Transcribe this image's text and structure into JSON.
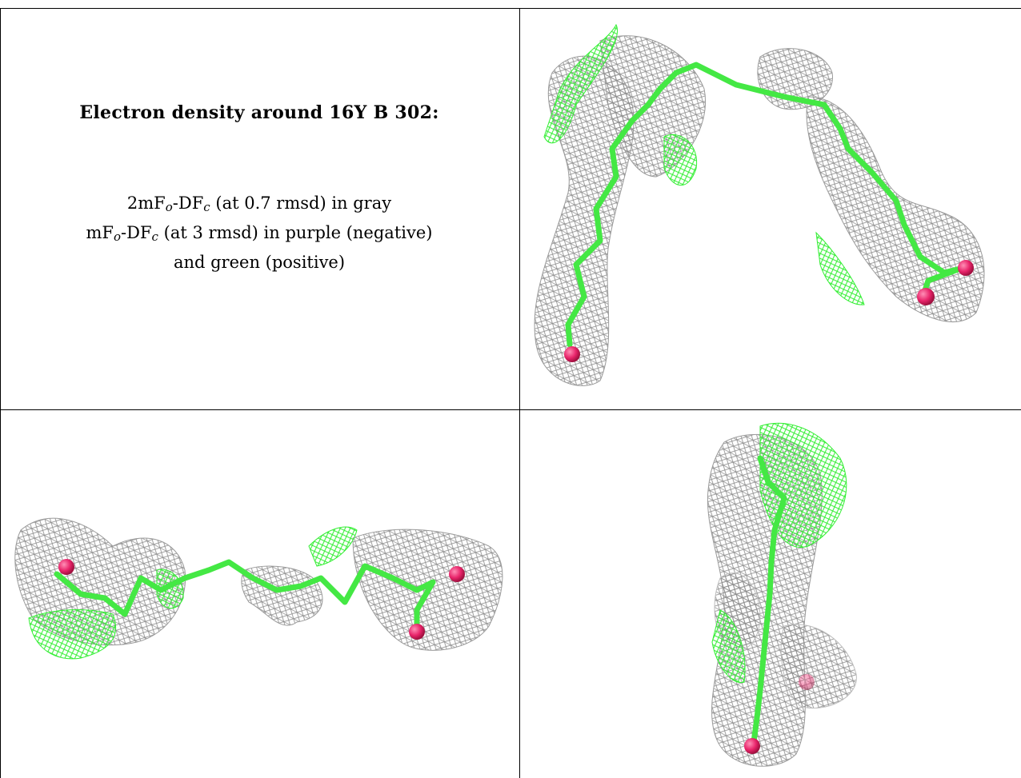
{
  "caption": {
    "title": "Electron density around 16Y B 302:",
    "line1": {
      "pre": "2mF",
      "sub1": "o",
      "mid": "-DF",
      "sub2": "c",
      "post": " (at 0.7 rmsd) in gray"
    },
    "line2": {
      "pre": "mF",
      "sub1": "o",
      "mid": "-DF",
      "sub2": "c",
      "post": " (at 3 rmsd) in purple (negative)"
    },
    "line3": "and green (positive)"
  },
  "colors": {
    "mesh_2fofc": "#9a9a9a",
    "mesh_fofc_positive": "#33ee33",
    "ligand_carbon": "#44e844",
    "ligand_oxygen": "#e8246a"
  },
  "views": [
    {
      "name": "view-top-right",
      "description_icon": "ligand-density-mesh"
    },
    {
      "name": "view-bottom-left",
      "description_icon": "ligand-density-mesh"
    },
    {
      "name": "view-bottom-right",
      "description_icon": "ligand-density-mesh"
    }
  ]
}
